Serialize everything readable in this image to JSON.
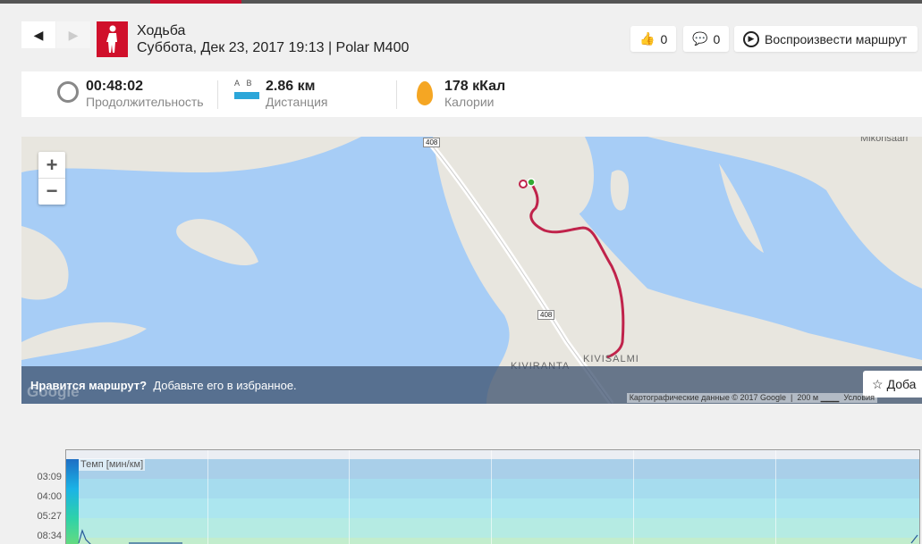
{
  "header": {
    "sport": "Ходьба",
    "subtitle": "Суббота, Дек 23, 2017 19:13 | Polar M400",
    "likes": "0",
    "comments": "0",
    "replay_label": "Воспроизвести маршрут"
  },
  "stats": [
    {
      "value": "00:48:02",
      "label": "Продолжительность",
      "icon": "stopwatch-icon"
    },
    {
      "value": "2.86 км",
      "label": "Дистанция",
      "icon": "ruler-icon",
      "a": "A",
      "b": "B"
    },
    {
      "value": "178 кКал",
      "label": "Калории",
      "icon": "flame-icon"
    }
  ],
  "map": {
    "labels": {
      "road1": "408",
      "road2": "408",
      "kiviranta": "KIVIRANTA",
      "kivisalmi": "KIVISALMI",
      "mikonsaari": "Mikonsaari"
    },
    "banner_bold": "Нравится маршрут?",
    "banner_text": "Добавьте его в избранное.",
    "fav_label": "Доба",
    "attribution": "Картографические данные © 2017 Google",
    "scale": "200 м",
    "terms": "Условия",
    "google": "Google",
    "route_color": "#c0234b"
  },
  "chart": {
    "series_label": "Темп [мин/км]",
    "y_ticks": [
      "03:09",
      "04:00",
      "05:27",
      "08:34"
    ]
  }
}
